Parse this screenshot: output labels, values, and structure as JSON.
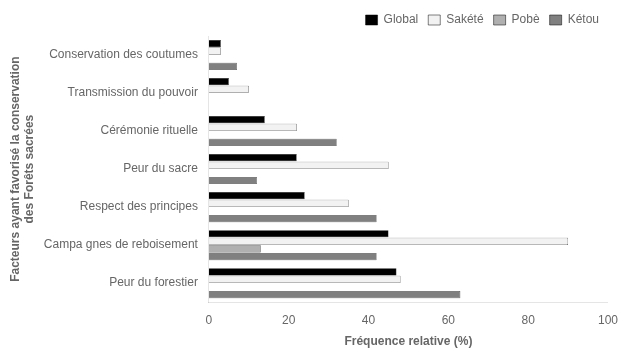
{
  "chart_data": {
    "type": "bar",
    "orientation": "horizontal",
    "categories": [
      "Peur du forestier",
      "Campa gnes de reboisement",
      "Respect des principes",
      "Peur du sacre",
      "Cérémonie rituelle",
      "Transmission du pouvoir",
      "Conservation des coutumes"
    ],
    "series": [
      {
        "name": "Global",
        "color": "#000000",
        "values": [
          47,
          45,
          24,
          22,
          14,
          5,
          3
        ]
      },
      {
        "name": "Sakété",
        "color": "#f2f2f2",
        "values": [
          48,
          90,
          35,
          45,
          22,
          10,
          3
        ]
      },
      {
        "name": "Pobè",
        "color": "#b0b0b0",
        "values": [
          0,
          13,
          0,
          0,
          0,
          0,
          0
        ]
      },
      {
        "name": "Kétou",
        "color": "#808080",
        "values": [
          63,
          42,
          42,
          12,
          32,
          0,
          7
        ]
      }
    ],
    "xlabel": "Fréquence relative (%)",
    "ylabel": "Facteurs ayant favorisé la conservation\ndes Forêts sacrées",
    "xlim": [
      0,
      100
    ],
    "xticks": [
      0,
      20,
      40,
      60,
      80,
      100
    ],
    "grid": false,
    "legend": "upper right"
  }
}
